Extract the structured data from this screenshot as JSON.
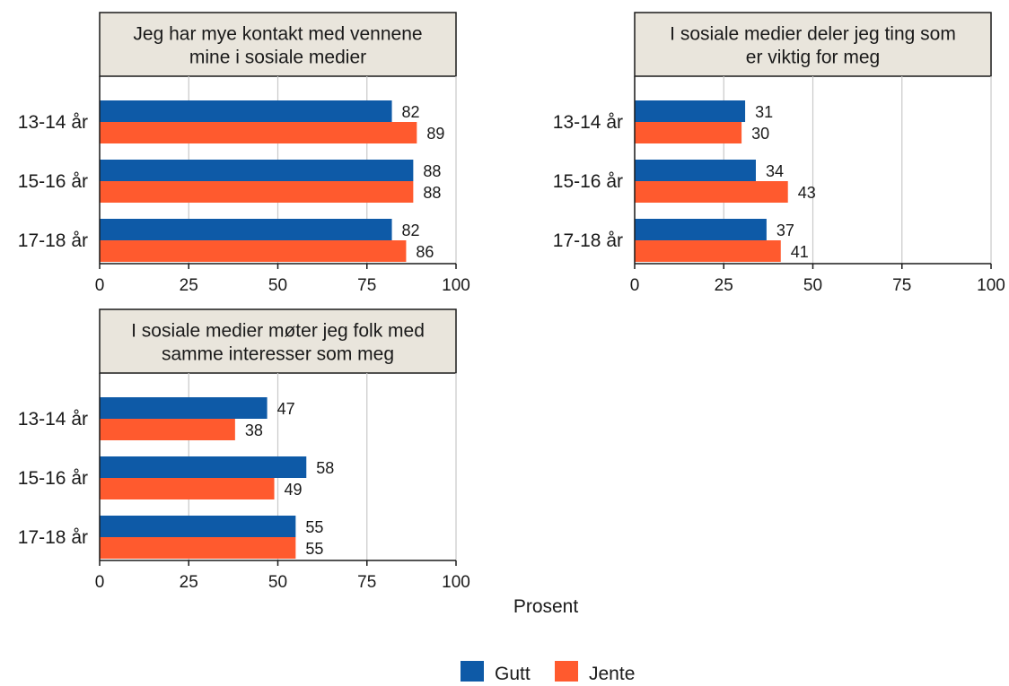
{
  "colors": {
    "gutt": "#0e5aa7",
    "jente": "#ff5a2e",
    "strip_bg": "#e9e5dc",
    "grid": "#c8c8c8",
    "axis": "#1a1a1a"
  },
  "x_axis_label": "Prosent",
  "legend": [
    {
      "label": "Gutt",
      "color": "#0e5aa7"
    },
    {
      "label": "Jente",
      "color": "#ff5a2e"
    }
  ],
  "chart_data": [
    {
      "type": "bar",
      "orientation": "horizontal",
      "title": "Jeg har mye kontakt med vennene mine i sosiale medier",
      "title_lines": [
        "Jeg har mye kontakt med vennene",
        "mine i sosiale medier"
      ],
      "categories": [
        "13-14 år",
        "15-16 år",
        "17-18 år"
      ],
      "series": [
        {
          "name": "Gutt",
          "values": [
            82,
            88,
            82
          ]
        },
        {
          "name": "Jente",
          "values": [
            89,
            88,
            86
          ]
        }
      ],
      "xlim": [
        0,
        100
      ],
      "xticks": [
        0,
        25,
        50,
        75,
        100
      ],
      "grid": true
    },
    {
      "type": "bar",
      "orientation": "horizontal",
      "title": "I sosiale medier deler jeg ting som er viktig for meg",
      "title_lines": [
        "I sosiale medier deler jeg ting som",
        "er viktig for meg"
      ],
      "categories": [
        "13-14 år",
        "15-16 år",
        "17-18 år"
      ],
      "series": [
        {
          "name": "Gutt",
          "values": [
            31,
            34,
            37
          ]
        },
        {
          "name": "Jente",
          "values": [
            30,
            43,
            41
          ]
        }
      ],
      "xlim": [
        0,
        100
      ],
      "xticks": [
        0,
        25,
        50,
        75,
        100
      ],
      "grid": true
    },
    {
      "type": "bar",
      "orientation": "horizontal",
      "title": "I sosiale medier møter jeg folk med samme interesser som meg",
      "title_lines": [
        "I sosiale medier møter jeg folk med",
        "samme interesser som meg"
      ],
      "categories": [
        "13-14 år",
        "15-16 år",
        "17-18 år"
      ],
      "series": [
        {
          "name": "Gutt",
          "values": [
            47,
            58,
            55
          ]
        },
        {
          "name": "Jente",
          "values": [
            38,
            49,
            55
          ]
        }
      ],
      "xlim": [
        0,
        100
      ],
      "xticks": [
        0,
        25,
        50,
        75,
        100
      ],
      "grid": true
    }
  ]
}
